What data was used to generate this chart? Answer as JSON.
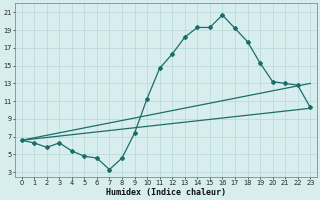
{
  "xlabel": "Humidex (Indice chaleur)",
  "background_color": "#d8eeee",
  "line_color": "#1a6e6a",
  "grid_color": "#b8d8d8",
  "xlim": [
    -0.5,
    23.5
  ],
  "ylim": [
    2.5,
    22
  ],
  "yticks": [
    3,
    5,
    7,
    9,
    11,
    13,
    15,
    17,
    19,
    21
  ],
  "xticks": [
    0,
    1,
    2,
    3,
    4,
    5,
    6,
    7,
    8,
    9,
    10,
    11,
    12,
    13,
    14,
    15,
    16,
    17,
    18,
    19,
    20,
    21,
    22,
    23
  ],
  "main_x": [
    0,
    1,
    2,
    3,
    4,
    5,
    6,
    7,
    8,
    9,
    10,
    11,
    12,
    13,
    14,
    15,
    16,
    17,
    18,
    19,
    20,
    21,
    22,
    23
  ],
  "main_y": [
    6.6,
    6.3,
    5.8,
    6.3,
    5.4,
    4.8,
    4.6,
    3.3,
    4.6,
    7.4,
    11.3,
    14.7,
    16.3,
    18.2,
    19.3,
    19.3,
    20.7,
    19.2,
    17.7,
    15.3,
    13.2,
    13.0,
    12.8,
    10.3
  ],
  "line2_x": [
    0,
    23
  ],
  "line2_y": [
    6.6,
    13.0
  ],
  "line3_x": [
    0,
    23
  ],
  "line3_y": [
    6.6,
    10.2
  ]
}
